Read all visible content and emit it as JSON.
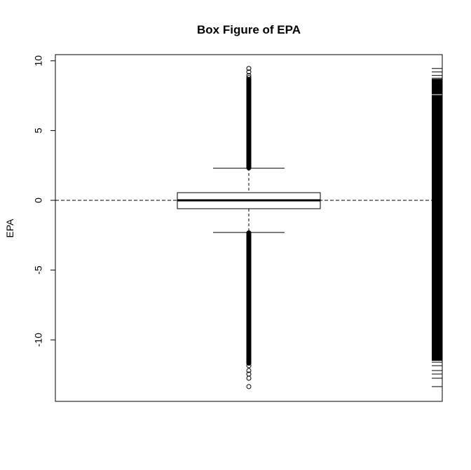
{
  "chart_data": {
    "type": "box",
    "title": "Box Figure of EPA",
    "xlabel": "",
    "ylabel": "EPA",
    "ylim": [
      -14.4,
      10.5
    ],
    "yticks": [
      10,
      5,
      0,
      -5,
      -10
    ],
    "ytick_labels": [
      "10",
      "5",
      "0",
      "-5",
      "-10"
    ],
    "reference_line": {
      "y": 0,
      "style": "dashed"
    },
    "box": {
      "lower_whisker": -2.3,
      "q1": -0.6,
      "median": 0.0,
      "q3": 0.55,
      "upper_whisker": 2.3
    },
    "outlier_ranges": [
      {
        "from": 2.3,
        "to": 8.7
      },
      {
        "from": -2.3,
        "to": -11.7
      }
    ],
    "outliers": [
      9.45,
      9.2,
      8.95,
      8.8,
      -11.85,
      -12.2,
      -12.45,
      -12.75,
      -13.35
    ],
    "rug": {
      "dense_ranges": [
        {
          "from": 7.6,
          "to": 8.7
        },
        {
          "from": -11.5,
          "to": 7.55
        }
      ],
      "ticks": [
        9.45,
        9.2,
        8.95,
        8.75,
        -11.6,
        -11.85,
        -12.2,
        -12.45,
        -12.75,
        -13.35
      ]
    },
    "grid": false,
    "legend": "none"
  }
}
